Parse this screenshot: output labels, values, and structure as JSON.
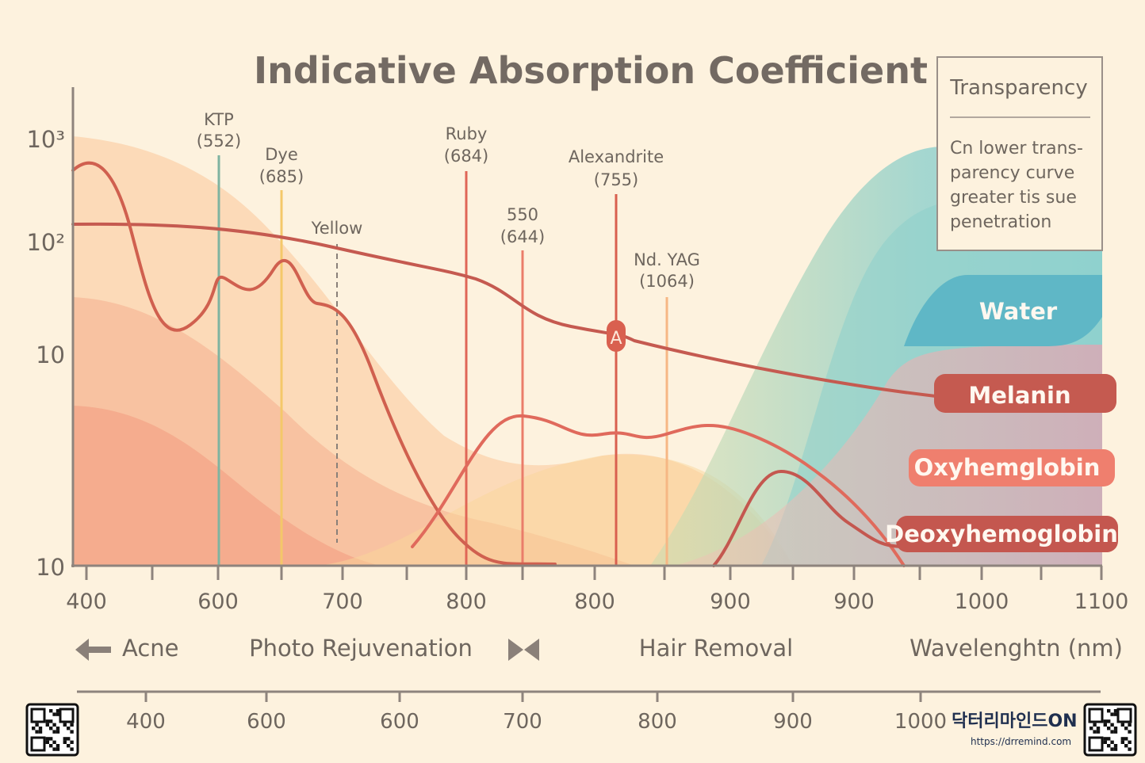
{
  "chart_data": {
    "type": "line",
    "title": "Indicative Absorption Coefficient",
    "y_tick_labels": [
      "10³",
      "10²",
      "10",
      "10"
    ],
    "y_scale": "log",
    "x_tick_labels": [
      "400",
      "600",
      "700",
      "800",
      "800",
      "900",
      "900",
      "1000",
      "1100"
    ],
    "xlabel": "Wavelenghtn (nm)",
    "secondary_x_tick_labels": [
      "400",
      "600",
      "600",
      "700",
      "800",
      "900",
      "1000"
    ],
    "lasers": [
      {
        "name": "KTP",
        "wavelength": "(552)",
        "color": "#7fb3a0"
      },
      {
        "name": "Dye",
        "wavelength": "(685)",
        "color": "#f4c869"
      },
      {
        "name": "Yellow",
        "wavelength": "",
        "color": "#8a8079"
      },
      {
        "name": "Ruby",
        "wavelength": "(684)",
        "color": "#e06656"
      },
      {
        "name": "550",
        "wavelength": "(644)",
        "color": "#ea7d6a"
      },
      {
        "name": "Alexandrite",
        "wavelength": "(755)",
        "color": "#d9604f"
      },
      {
        "name": "Nd. YAG",
        "wavelength": "(1064)",
        "color": "#f6b784"
      }
    ],
    "alexandrite_marker": "A",
    "series": [
      {
        "name": "Water",
        "color": "#5fb7c6"
      },
      {
        "name": "Melanin",
        "color": "#c55a50"
      },
      {
        "name": "Oxyhemglobin",
        "color": "#ef7f6e"
      },
      {
        "name": "Deoxyhemoglobin",
        "color": "#c4574f"
      }
    ],
    "regions": [
      "Acne",
      "Photo Rejuvenation",
      "Hair Removal"
    ],
    "legend": {
      "title": "Transparency",
      "lines": [
        "Cn lower trans-",
        "parency curve",
        "greater tis sue",
        "penetration"
      ]
    },
    "grid": false
  },
  "branding": {
    "name": "닥터리마인드ON",
    "url": "https://drremind.com"
  }
}
